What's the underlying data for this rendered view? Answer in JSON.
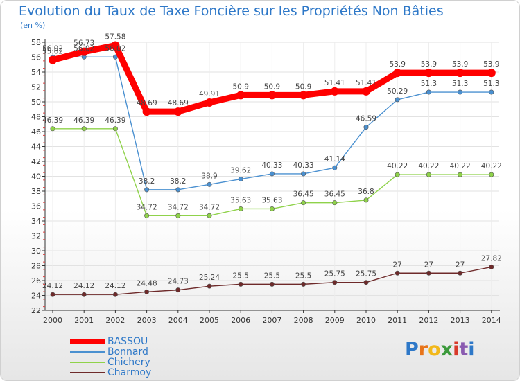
{
  "title": "Evolution du Taux de Taxe Foncière sur les Propriétés Non Bâties",
  "subtitle": "(en %)",
  "logo": {
    "text": "Proxiti",
    "letters": [
      {
        "ch": "P",
        "color": "#2e78c8"
      },
      {
        "ch": "r",
        "color": "#e8741a"
      },
      {
        "ch": "o",
        "color": "#f2b81a"
      },
      {
        "ch": "x",
        "color": "#3c9a3c"
      },
      {
        "ch": "i",
        "color": "#d83a2a"
      },
      {
        "ch": "t",
        "color": "#8a5bb0"
      },
      {
        "ch": "i",
        "color": "#2e78c8"
      }
    ]
  },
  "chart_data": {
    "type": "line",
    "title": "Evolution du Taux de Taxe Foncière sur les Propriétés Non Bâties",
    "ylabel": "(en %)",
    "xlabel": "",
    "ylim": [
      22,
      58
    ],
    "yticks": [
      22,
      24,
      26,
      28,
      30,
      32,
      34,
      36,
      38,
      40,
      42,
      44,
      46,
      48,
      50,
      52,
      54,
      56,
      58
    ],
    "categories": [
      "2000",
      "2001",
      "2002",
      "2003",
      "2004",
      "2005",
      "2006",
      "2007",
      "2008",
      "2009",
      "2010",
      "2011",
      "2012",
      "2013",
      "2014"
    ],
    "grid": true,
    "legend_position": "bottom-left",
    "series": [
      {
        "name": "BASSOU",
        "color": "#ff0000",
        "values": [
          55.62,
          56.73,
          57.58,
          48.69,
          48.69,
          49.91,
          50.9,
          50.9,
          50.9,
          51.41,
          51.41,
          53.9,
          53.9,
          53.9,
          53.9
        ],
        "labels": [
          "55.62",
          "56.73",
          "57.58",
          "48.69",
          "48.69",
          "49.91",
          "50.9",
          "50.9",
          "50.9",
          "51.41",
          "51.41",
          "53.9",
          "53.9",
          "53.9",
          "53.9"
        ]
      },
      {
        "name": "Bonnard",
        "color": "#4a90d0",
        "values": [
          56.02,
          56.02,
          56.02,
          38.2,
          38.2,
          38.9,
          39.62,
          40.33,
          40.33,
          41.14,
          46.59,
          50.29,
          51.3,
          51.3,
          51.3
        ],
        "labels": [
          "56.02",
          "56.02",
          "56.02",
          "38.2",
          "38.2",
          "38.9",
          "39.62",
          "40.33",
          "40.33",
          "41.14",
          "46.59",
          "50.29",
          "51.3",
          "51.3",
          "51.3"
        ]
      },
      {
        "name": "Chichery",
        "color": "#8fd24a",
        "values": [
          46.39,
          46.39,
          46.39,
          34.72,
          34.72,
          34.72,
          35.63,
          35.63,
          36.45,
          36.45,
          36.8,
          40.22,
          40.22,
          40.22,
          40.22
        ],
        "labels": [
          "46.39",
          "46.39",
          "46.39",
          "34.72",
          "34.72",
          "34.72",
          "35.63",
          "35.63",
          "36.45",
          "36.45",
          "36.8",
          "40.22",
          "40.22",
          "40.22",
          "40.22"
        ]
      },
      {
        "name": "Charmoy",
        "color": "#6e2a2a",
        "values": [
          24.12,
          24.12,
          24.12,
          24.48,
          24.73,
          25.24,
          25.5,
          25.5,
          25.5,
          25.75,
          25.75,
          27,
          27,
          27,
          27.82
        ],
        "labels": [
          "24.12",
          "24.12",
          "24.12",
          "24.48",
          "24.73",
          "25.24",
          "25.5",
          "25.5",
          "25.5",
          "25.75",
          "25.75",
          "27",
          "27",
          "27",
          "27.82"
        ]
      }
    ]
  }
}
